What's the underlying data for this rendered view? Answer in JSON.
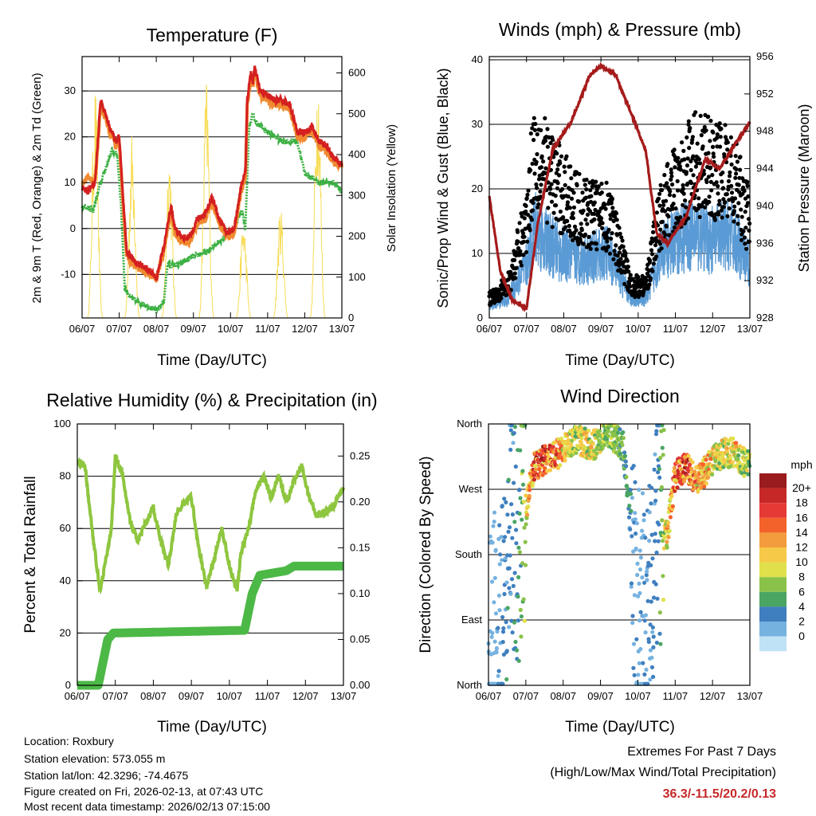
{
  "temperature_panel": {
    "title": "Temperature (F)",
    "left_axis_label": "2m & 9m T (Red, Orange) & 2m Td (Green)",
    "right_axis_label": "Solar Insolation (Yellow)",
    "x_label": "Time (Day/UTC)"
  },
  "wind_panel": {
    "title": "Winds (mph) & Pressure (mb)",
    "left_axis_label": "Sonic/Prop Wind & Gust (Blue, Black)",
    "right_axis_label": "Station Pressure (Maroon)",
    "x_label": "Time (Day/UTC)"
  },
  "humidity_panel": {
    "title": "Relative Humidity (%) & Precipitation (in)",
    "left_axis_label": "Percent & Total Rainfall",
    "x_label": "Time (Day/UTC)"
  },
  "direction_panel": {
    "title": "Wind Direction",
    "left_axis_label": "Direction (Colored By Speed)",
    "x_label": "Time (Day/UTC)",
    "colorbar_title": "mph",
    "colorbar_labels": [
      "20+",
      "18",
      "16",
      "14",
      "12",
      "10",
      "8",
      "6",
      "4",
      "2",
      "0"
    ],
    "colorbar_colors": [
      "#9a1b1e",
      "#c62828",
      "#e53935",
      "#f4622b",
      "#f39c3d",
      "#f7c948",
      "#e0e04a",
      "#8ac249",
      "#4aa563",
      "#3f7fbf",
      "#76b2e0",
      "#bfe2f6"
    ]
  },
  "info": {
    "location": "Location: Roxbury",
    "elevation": "Station elevation: 573.055 m",
    "latlon": "Station lat/lon: 42.3296; -74.4675",
    "created": "Figure created on Fri, 2026-02-13, at 07:43 UTC",
    "timestamp": "Most recent data timestamp: 2026/02/13 07:15:00"
  },
  "extremes": {
    "title": "Extremes For Past 7 Days",
    "subtitle": "(High/Low/Max Wind/Total Precipitation)",
    "values": "36.3/-11.5/20.2/0.13"
  },
  "colors": {
    "temp_2m": "#d42020",
    "temp_9m": "#f08a30",
    "dewpoint": "#3cb043",
    "insolation": "#f7dc55",
    "wind": "#5b9bd5",
    "gust": "#000000",
    "pressure": "#a51b1b",
    "rh": "#8ec63f",
    "precip": "#4cb846"
  },
  "chart_data": [
    {
      "type": "line",
      "id": "temperature",
      "title": "Temperature (F)",
      "xlabel": "Time (Day/UTC)",
      "ylabel": "2m & 9m T (Red, Orange) & 2m Td (Green)",
      "y2label": "Solar Insolation (Yellow)",
      "x_ticks": [
        "06/07",
        "07/07",
        "08/07",
        "09/07",
        "10/07",
        "11/07",
        "12/07",
        "13/07"
      ],
      "xlim": [
        0,
        7
      ],
      "ylim": [
        -19.5,
        37.5
      ],
      "yticks": [
        -10,
        0,
        10,
        20,
        30
      ],
      "y2lim": [
        0,
        640
      ],
      "y2ticks": [
        0,
        100,
        200,
        300,
        400,
        500,
        600
      ],
      "series": [
        {
          "name": "2m T",
          "axis": "left",
          "x": [
            0,
            0.15,
            0.35,
            0.5,
            0.75,
            0.9,
            1.0,
            1.1,
            1.2,
            1.4,
            1.6,
            1.8,
            2.0,
            2.2,
            2.4,
            2.5,
            2.7,
            2.9,
            3.1,
            3.3,
            3.5,
            3.7,
            3.9,
            4.1,
            4.3,
            4.4,
            4.45,
            4.5,
            4.55,
            4.6,
            4.65,
            4.8,
            5.0,
            5.2,
            5.4,
            5.6,
            5.8,
            6.0,
            6.2,
            6.4,
            6.6,
            6.8,
            7.0
          ],
          "y": [
            9,
            8,
            10,
            28,
            22,
            19,
            20,
            7,
            -5,
            -7,
            -8,
            -9,
            -11,
            -4,
            5,
            0,
            -2,
            -2,
            2,
            3,
            7,
            2,
            -1,
            0,
            10,
            12,
            28,
            31,
            34,
            32,
            35,
            30,
            29,
            28,
            28,
            27,
            21,
            21,
            22,
            19,
            18,
            15,
            14
          ]
        },
        {
          "name": "9m T",
          "axis": "left",
          "x": [
            0,
            0.15,
            0.35,
            0.5,
            0.75,
            0.9,
            1.0,
            1.1,
            1.2,
            1.4,
            1.6,
            1.8,
            2.0,
            2.2,
            2.4,
            2.5,
            2.7,
            2.9,
            3.1,
            3.3,
            3.5,
            3.7,
            3.9,
            4.1,
            4.3,
            4.4,
            4.45,
            4.5,
            4.55,
            4.6,
            4.65,
            4.8,
            5.0,
            5.2,
            5.4,
            5.6,
            5.8,
            6.0,
            6.2,
            6.4,
            6.6,
            6.8,
            7.0
          ],
          "y": [
            10,
            11,
            10,
            27,
            21,
            18,
            19,
            6,
            -6,
            -8,
            -9,
            -10,
            -11,
            -5,
            4,
            -1,
            -3,
            -3,
            1,
            2,
            6,
            1,
            -2,
            -1,
            9,
            11,
            27,
            30,
            33,
            31,
            34,
            29,
            28,
            27,
            27,
            26,
            20,
            20,
            21,
            18,
            17,
            14,
            14
          ]
        },
        {
          "name": "2m Td",
          "axis": "left",
          "x": [
            0,
            0.3,
            0.5,
            0.8,
            0.95,
            1.05,
            1.15,
            1.3,
            1.5,
            1.8,
            2.0,
            2.2,
            2.3,
            2.6,
            3.0,
            3.4,
            3.8,
            4.1,
            4.3,
            4.4,
            4.5,
            4.6,
            4.7,
            5.0,
            5.4,
            5.8,
            6.0,
            6.4,
            6.8,
            7.0
          ],
          "y": [
            5,
            4,
            10,
            17,
            16,
            5,
            -13,
            -15,
            -16,
            -17,
            -18,
            -16,
            -8,
            -8,
            -6,
            -5,
            -2,
            0,
            4,
            0,
            22,
            25,
            23,
            21,
            19,
            19,
            12,
            10,
            10,
            8
          ]
        },
        {
          "name": "Solar Insolation",
          "axis": "right",
          "peaks_day": [
            0.35,
            1.35,
            2.35,
            3.35,
            4.35,
            5.35,
            6.35
          ],
          "peaks_value": [
            580,
            460,
            420,
            590,
            250,
            280,
            630
          ]
        }
      ]
    },
    {
      "type": "scatter",
      "id": "winds",
      "title": "Winds (mph) & Pressure (mb)",
      "xlabel": "Time (Day/UTC)",
      "ylabel": "Sonic/Prop Wind & Gust (Blue, Black)",
      "y2label": "Station Pressure (Maroon)",
      "x_ticks": [
        "06/07",
        "07/07",
        "08/07",
        "09/07",
        "10/07",
        "11/07",
        "12/07",
        "13/07"
      ],
      "xlim": [
        0,
        7
      ],
      "ylim": [
        0,
        40.5
      ],
      "yticks": [
        0,
        10,
        20,
        30,
        40
      ],
      "y2lim": [
        928,
        956
      ],
      "y2ticks": [
        928,
        932,
        936,
        940,
        944,
        948,
        952,
        956
      ],
      "series": [
        {
          "name": "Wind (blue)",
          "axis": "left",
          "x": [
            0,
            0.5,
            1.0,
            1.2,
            1.5,
            1.9,
            2.5,
            3.2,
            3.8,
            4.2,
            4.6,
            5.0,
            5.5,
            6.0,
            6.5,
            7.0
          ],
          "y": [
            2,
            3,
            8,
            14,
            12,
            10,
            9,
            10,
            3,
            3,
            10,
            12,
            13,
            12,
            13,
            8
          ]
        },
        {
          "name": "Gust (black)",
          "axis": "left",
          "x": [
            0,
            0.5,
            1.0,
            1.2,
            1.5,
            1.9,
            2.5,
            3.2,
            3.8,
            4.2,
            4.6,
            5.0,
            5.5,
            6.0,
            6.5,
            7.0
          ],
          "y": [
            3,
            5,
            15,
            26,
            23,
            20,
            16,
            16,
            5,
            5,
            16,
            20,
            24,
            23,
            22,
            15
          ]
        },
        {
          "name": "Station Pressure",
          "axis": "right",
          "type": "line",
          "x": [
            0,
            0.3,
            0.6,
            1.0,
            1.3,
            1.7,
            2.2,
            2.7,
            3.0,
            3.4,
            3.8,
            4.2,
            4.5,
            4.8,
            5.3,
            5.8,
            6.2,
            6.5,
            7.0
          ],
          "y": [
            941,
            933,
            930,
            929,
            938,
            946,
            949,
            954,
            955,
            954,
            950,
            946,
            937,
            936,
            939,
            945,
            944,
            946,
            949
          ]
        }
      ]
    },
    {
      "type": "line",
      "id": "humidity",
      "title": "Relative Humidity (%) & Precipitation (in)",
      "xlabel": "Time (Day/UTC)",
      "ylabel": "Percent & Total Rainfall",
      "x_ticks": [
        "06/07",
        "07/07",
        "08/07",
        "09/07",
        "10/07",
        "11/07",
        "12/07",
        "13/07"
      ],
      "xlim": [
        0,
        7
      ],
      "ylim": [
        0,
        100
      ],
      "yticks": [
        0,
        20,
        40,
        60,
        80,
        100
      ],
      "y2lim": [
        0,
        0.285
      ],
      "y2ticks": [
        0.0,
        0.05,
        0.1,
        0.15,
        0.2,
        0.25
      ],
      "series": [
        {
          "name": "Relative Humidity",
          "axis": "left",
          "x": [
            0,
            0.2,
            0.4,
            0.6,
            0.9,
            1.0,
            1.2,
            1.4,
            1.6,
            1.8,
            2.0,
            2.2,
            2.4,
            2.6,
            2.8,
            3.0,
            3.2,
            3.4,
            3.6,
            3.8,
            4.0,
            4.2,
            4.3,
            4.5,
            4.7,
            4.9,
            5.1,
            5.3,
            5.5,
            5.7,
            5.9,
            6.1,
            6.3,
            6.5,
            6.7,
            7.0
          ],
          "y": [
            86,
            84,
            58,
            36,
            60,
            88,
            80,
            62,
            55,
            62,
            68,
            55,
            46,
            65,
            70,
            72,
            52,
            38,
            48,
            60,
            46,
            36,
            50,
            60,
            75,
            80,
            72,
            80,
            70,
            78,
            84,
            72,
            65,
            66,
            68,
            76
          ]
        },
        {
          "name": "Total Precipitation",
          "axis": "right",
          "x": [
            0,
            0.2,
            0.55,
            0.6,
            0.7,
            0.8,
            0.95,
            4.4,
            4.6,
            4.8,
            5.5,
            5.7,
            6.0,
            7.0
          ],
          "y": [
            0,
            0,
            0,
            0.01,
            0.03,
            0.05,
            0.057,
            0.06,
            0.1,
            0.12,
            0.125,
            0.13,
            0.13,
            0.13
          ]
        }
      ]
    },
    {
      "type": "scatter",
      "id": "wind_direction",
      "title": "Wind Direction",
      "xlabel": "Time (Day/UTC)",
      "ylabel": "Direction (Colored By Speed)",
      "x_ticks": [
        "06/07",
        "07/07",
        "08/07",
        "09/07",
        "10/07",
        "11/07",
        "12/07",
        "13/07"
      ],
      "xlim": [
        0,
        7
      ],
      "ylim": [
        0,
        360
      ],
      "yticks": [
        0,
        90,
        180,
        270,
        360
      ],
      "ytick_labels": [
        "North",
        "East",
        "South",
        "West",
        "North"
      ],
      "series": [
        {
          "name": "Direction",
          "x": [
            0.1,
            0.3,
            0.5,
            0.6,
            0.8,
            1.2,
            1.5,
            1.9,
            2.3,
            2.8,
            3.2,
            3.6,
            4.0,
            4.2,
            4.5,
            4.8,
            5.0,
            5.3,
            5.6,
            6.0,
            6.3,
            6.6,
            7.0
          ],
          "y": [
            80,
            60,
            150,
            230,
            180,
            300,
            310,
            320,
            340,
            330,
            350,
            330,
            120,
            90,
            200,
            210,
            290,
            300,
            280,
            310,
            320,
            320,
            300
          ],
          "speed": [
            2,
            3,
            4,
            4,
            5,
            16,
            18,
            14,
            10,
            11,
            8,
            7,
            2,
            3,
            4,
            12,
            16,
            18,
            14,
            12,
            10,
            12,
            8
          ]
        }
      ]
    }
  ]
}
